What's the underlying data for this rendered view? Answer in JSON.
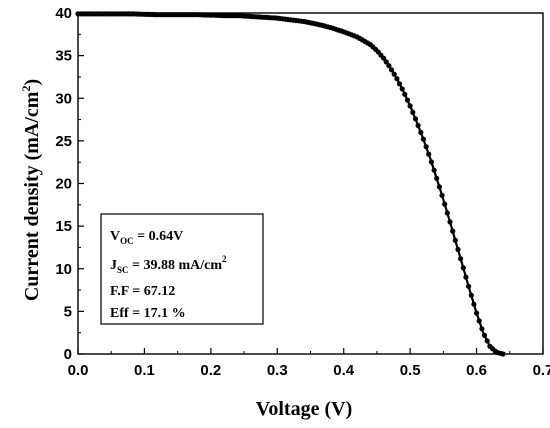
{
  "chart_data": {
    "type": "scatter",
    "xlabel": "Voltage (V)",
    "ylabel_main": "Current density (mA/cm",
    "ylabel_sup": "2",
    "ylabel_close": ")",
    "xlim": [
      0.0,
      0.7
    ],
    "ylim": [
      0,
      40
    ],
    "xticks": [
      "0.0",
      "0.1",
      "0.2",
      "0.3",
      "0.4",
      "0.5",
      "0.6",
      "0.7"
    ],
    "yticks": [
      "0",
      "5",
      "10",
      "15",
      "20",
      "25",
      "30",
      "35",
      "40"
    ],
    "grid": false,
    "series": [
      {
        "x": [
          0.0,
          0.02,
          0.04,
          0.06,
          0.08,
          0.1,
          0.12,
          0.14,
          0.16,
          0.18,
          0.2,
          0.22,
          0.24,
          0.26,
          0.28,
          0.3,
          0.32,
          0.34,
          0.36,
          0.38,
          0.4,
          0.42,
          0.44,
          0.45,
          0.46,
          0.47,
          0.48,
          0.49,
          0.5,
          0.51,
          0.52,
          0.53,
          0.54,
          0.55,
          0.56,
          0.57,
          0.58,
          0.59,
          0.6,
          0.61,
          0.62,
          0.63,
          0.64
        ],
        "y": [
          39.9,
          39.9,
          39.9,
          39.9,
          39.9,
          39.85,
          39.8,
          39.8,
          39.8,
          39.8,
          39.75,
          39.7,
          39.7,
          39.6,
          39.5,
          39.4,
          39.2,
          39.0,
          38.7,
          38.3,
          37.8,
          37.2,
          36.3,
          35.6,
          34.7,
          33.6,
          32.3,
          30.8,
          29.1,
          27.2,
          25.2,
          23.0,
          20.6,
          18.1,
          15.5,
          12.8,
          10.1,
          7.4,
          4.8,
          2.5,
          0.9,
          0.2,
          0.0
        ]
      }
    ],
    "legend": {
      "voc_main": "V",
      "voc_sub": "OC",
      "voc_val": " = 0.64V",
      "jsc_main": "J",
      "jsc_sub": "SC",
      "jsc_val": " = 39.88 mA/cm",
      "jsc_sup": "2",
      "ff": "F.F = 67.12",
      "eff": "Eff = 17.1 %"
    }
  }
}
